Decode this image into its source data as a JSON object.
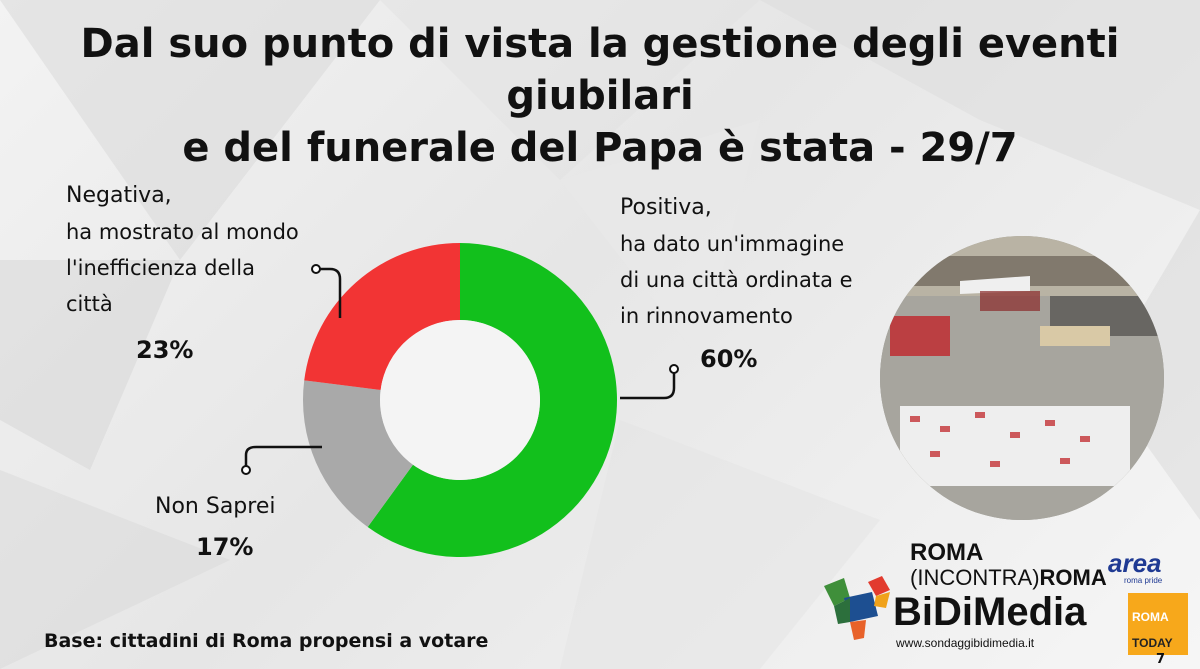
{
  "title_line1": "Dal suo punto di vista la gestione degli eventi giubilari",
  "title_line2": "e del funerale del Papa è stata - 29/7",
  "base_text": "Base: cittadini di Roma propensi a votare",
  "labels": {
    "negativa": [
      "Negativa,",
      "ha mostrato al mondo",
      "l'inefficienza della",
      "città"
    ],
    "positiva": [
      "Positiva,",
      "ha dato un'immagine",
      "di una città ordinata e",
      "in rinnovamento"
    ],
    "non_saprei": "Non Saprei"
  },
  "percent_labels": {
    "positiva": "60%",
    "negativa": "23%",
    "non_saprei": "17%"
  },
  "logos": {
    "roma_line1": "ROMA",
    "roma_line2_a": "(INCONTRA)",
    "roma_line2_b": "ROMA",
    "area": "area",
    "area_sub": "roma pride",
    "brand": "BiDiMedia",
    "site": "www.sondaggibidimedia.it",
    "today_1": "ROMA",
    "today_2": "TODAY"
  },
  "page_number": "7",
  "chart_data": {
    "type": "pie",
    "title": "Dal suo punto di vista la gestione degli eventi giubilari e del funerale del Papa è stata - 29/7",
    "categories": [
      "Positiva",
      "Non Saprei",
      "Negativa"
    ],
    "values": [
      60,
      17,
      23
    ],
    "unit": "%",
    "donut": true,
    "colors": [
      "#12c01c",
      "#a9a9a9",
      "#f23434"
    ]
  }
}
